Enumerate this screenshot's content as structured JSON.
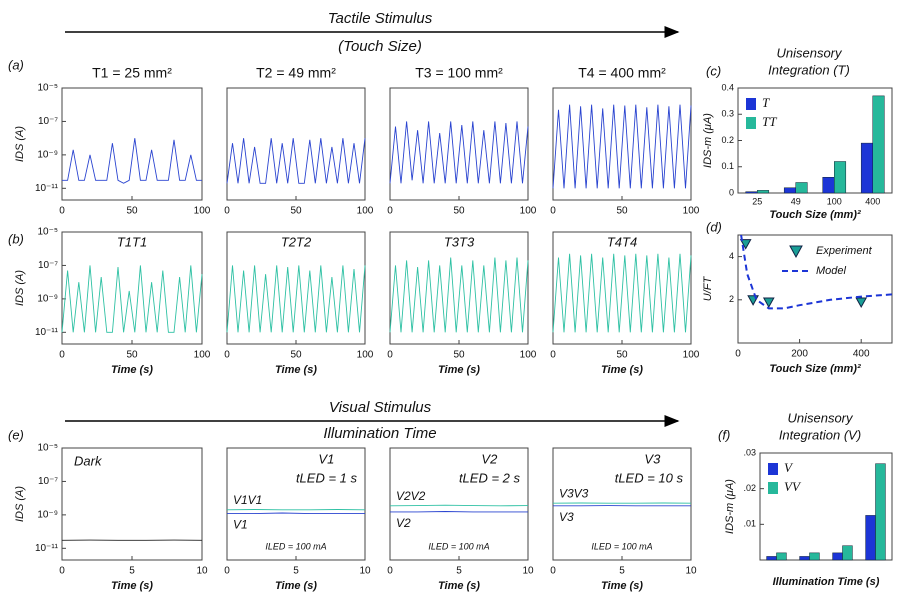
{
  "header": {
    "tactile": "Tactile Stimulus",
    "touch_size": "(Touch Size)",
    "visual": "Visual Stimulus",
    "illumination": "Illumination Time"
  },
  "chart_data": [
    {
      "type": "line",
      "panel_label": "(a)",
      "title": "T1 = 25 mm²",
      "title_color": "#2233bb",
      "log_y": true,
      "ylabel": "IDS (A)",
      "ylim": [
        2e-12,
        1e-05
      ],
      "yticks": [
        {
          "value": 1e-05,
          "label": "10⁻⁵"
        },
        {
          "value": 1e-07,
          "label": "10⁻⁷"
        },
        {
          "value": 1e-09,
          "label": "10⁻⁹"
        },
        {
          "value": 1e-11,
          "label": "10⁻¹¹"
        }
      ],
      "xlim": [
        0,
        100
      ],
      "xticks": [
        0,
        50,
        100
      ],
      "x": [
        0,
        4,
        8,
        12,
        16,
        20,
        24,
        28,
        32,
        36,
        40,
        44,
        48,
        52,
        56,
        60,
        64,
        68,
        72,
        76,
        80,
        84,
        88,
        92,
        96,
        100
      ],
      "series": [
        {
          "color": "#2a44d0",
          "values": [
            3e-11,
            3e-11,
            2e-09,
            3e-11,
            3e-11,
            1e-09,
            3e-11,
            3e-11,
            3e-11,
            5e-09,
            3e-11,
            2e-11,
            3e-11,
            1e-08,
            3e-11,
            3e-11,
            2e-09,
            3e-11,
            3e-11,
            3e-11,
            8e-09,
            3e-11,
            3e-11,
            1e-09,
            3e-11,
            3e-11
          ]
        }
      ]
    },
    {
      "type": "line",
      "title": "T2 = 49 mm²",
      "title_color": "#2233bb",
      "log_y": true,
      "ylim": [
        2e-12,
        1e-05
      ],
      "xlim": [
        0,
        100
      ],
      "xticks": [
        0,
        50,
        100
      ],
      "x": [
        0,
        4,
        8,
        12,
        16,
        20,
        24,
        28,
        32,
        36,
        40,
        44,
        48,
        52,
        56,
        60,
        64,
        68,
        72,
        76,
        80,
        84,
        88,
        92,
        96,
        100
      ],
      "series": [
        {
          "color": "#2a44d0",
          "values": [
            2e-11,
            5e-09,
            2e-11,
            1e-08,
            2e-11,
            3e-09,
            2e-11,
            2e-11,
            1e-08,
            2e-11,
            5e-09,
            2e-11,
            1e-08,
            2e-11,
            2e-11,
            8e-09,
            2e-11,
            1e-08,
            2e-11,
            3e-09,
            2e-11,
            1e-08,
            2e-11,
            5e-09,
            2e-11,
            1e-08
          ]
        }
      ]
    },
    {
      "type": "line",
      "title": "T3 = 100 mm²",
      "title_color": "#2233bb",
      "log_y": true,
      "ylim": [
        2e-12,
        1e-05
      ],
      "xlim": [
        0,
        100
      ],
      "xticks": [
        0,
        50,
        100
      ],
      "x": [
        0,
        4,
        8,
        12,
        16,
        20,
        24,
        28,
        32,
        36,
        40,
        44,
        48,
        52,
        56,
        60,
        64,
        68,
        72,
        76,
        80,
        84,
        88,
        92,
        96,
        100
      ],
      "series": [
        {
          "color": "#2a44d0",
          "values": [
            2e-11,
            5e-08,
            2e-11,
            1e-07,
            3e-11,
            3e-08,
            2e-11,
            1e-07,
            2e-11,
            2e-08,
            2e-11,
            1e-07,
            2e-11,
            6e-08,
            2e-11,
            1e-07,
            2e-11,
            3e-08,
            2e-11,
            1e-07,
            2e-11,
            8e-08,
            2e-11,
            1e-07,
            2e-11,
            5e-08
          ]
        }
      ]
    },
    {
      "type": "line",
      "title": "T4 = 400 mm²",
      "title_color": "#2233bb",
      "log_y": true,
      "ylim": [
        2e-12,
        1e-05
      ],
      "xlim": [
        0,
        100
      ],
      "xticks": [
        0,
        50,
        100
      ],
      "x": [
        0,
        4,
        8,
        12,
        16,
        20,
        24,
        28,
        32,
        36,
        40,
        44,
        48,
        52,
        56,
        60,
        64,
        68,
        72,
        76,
        80,
        84,
        88,
        92,
        96,
        100
      ],
      "series": [
        {
          "color": "#2a44d0",
          "values": [
            1e-11,
            5e-07,
            1e-11,
            1e-06,
            1e-11,
            8e-07,
            1e-11,
            1e-06,
            1e-11,
            6e-07,
            1e-11,
            1e-06,
            1e-11,
            9e-07,
            1e-11,
            1e-06,
            1e-11,
            7e-07,
            1e-11,
            1e-06,
            1e-11,
            8e-07,
            1e-11,
            1e-06,
            1e-11,
            9e-07
          ]
        }
      ]
    },
    {
      "type": "line",
      "panel_label": "(b)",
      "title": "T1T1",
      "title_color": "#22b39a",
      "log_y": true,
      "ylabel": "IDS (A)",
      "xlabel": "Time (s)",
      "ylim": [
        2e-12,
        1e-05
      ],
      "yticks": [
        {
          "value": 1e-05,
          "label": "10⁻⁵"
        },
        {
          "value": 1e-07,
          "label": "10⁻⁷"
        },
        {
          "value": 1e-09,
          "label": "10⁻⁹"
        },
        {
          "value": 1e-11,
          "label": "10⁻¹¹"
        }
      ],
      "xlim": [
        0,
        100
      ],
      "xticks": [
        0,
        50,
        100
      ],
      "x": [
        0,
        4,
        8,
        12,
        16,
        20,
        24,
        28,
        32,
        36,
        40,
        44,
        48,
        52,
        56,
        60,
        64,
        68,
        72,
        76,
        80,
        84,
        88,
        92,
        96,
        100
      ],
      "series": [
        {
          "color": "#2fc1a4",
          "values": [
            1e-11,
            5e-08,
            1e-11,
            1e-08,
            1e-11,
            1e-07,
            1e-11,
            2e-08,
            1e-11,
            1e-11,
            8e-08,
            1e-11,
            3e-09,
            1e-11,
            1e-07,
            1e-11,
            1e-08,
            1e-11,
            5e-08,
            1e-11,
            1e-11,
            2e-08,
            1e-11,
            1e-07,
            1e-11,
            3e-08
          ]
        }
      ]
    },
    {
      "type": "line",
      "title": "T2T2",
      "title_color": "#22b39a",
      "log_y": true,
      "xlabel": "Time (s)",
      "ylim": [
        2e-12,
        1e-05
      ],
      "xlim": [
        0,
        100
      ],
      "xticks": [
        0,
        50,
        100
      ],
      "x": [
        0,
        4,
        8,
        12,
        16,
        20,
        24,
        28,
        32,
        36,
        40,
        44,
        48,
        52,
        56,
        60,
        64,
        68,
        72,
        76,
        80,
        84,
        88,
        92,
        96,
        100
      ],
      "series": [
        {
          "color": "#2fc1a4",
          "values": [
            1e-11,
            1e-07,
            1e-11,
            5e-08,
            1e-11,
            1e-07,
            1e-11,
            3e-08,
            1e-11,
            1e-07,
            1e-11,
            8e-08,
            1e-11,
            1e-07,
            1e-11,
            5e-08,
            1e-11,
            1e-07,
            1e-11,
            2e-08,
            1e-11,
            1e-07,
            1e-11,
            6e-08,
            1e-11,
            1e-07
          ]
        }
      ]
    },
    {
      "type": "line",
      "title": "T3T3",
      "title_color": "#22b39a",
      "log_y": true,
      "xlabel": "Time (s)",
      "ylim": [
        2e-12,
        1e-05
      ],
      "xlim": [
        0,
        100
      ],
      "xticks": [
        0,
        50,
        100
      ],
      "x": [
        0,
        4,
        8,
        12,
        16,
        20,
        24,
        28,
        32,
        36,
        40,
        44,
        48,
        52,
        56,
        60,
        64,
        68,
        72,
        76,
        80,
        84,
        88,
        92,
        96,
        100
      ],
      "series": [
        {
          "color": "#2fc1a4",
          "values": [
            1e-11,
            1e-07,
            1e-11,
            2e-07,
            1e-11,
            8e-08,
            1e-11,
            2e-07,
            1e-11,
            1e-07,
            1e-11,
            3e-07,
            1e-11,
            1e-07,
            1e-11,
            2e-07,
            1e-11,
            1e-07,
            1e-11,
            3e-07,
            1e-11,
            2e-07,
            1e-11,
            3e-07,
            1e-11,
            2e-07
          ]
        }
      ]
    },
    {
      "type": "line",
      "title": "T4T4",
      "title_color": "#22b39a",
      "log_y": true,
      "xlabel": "Time (s)",
      "ylim": [
        2e-12,
        1e-05
      ],
      "xlim": [
        0,
        100
      ],
      "xticks": [
        0,
        50,
        100
      ],
      "x": [
        0,
        4,
        8,
        12,
        16,
        20,
        24,
        28,
        32,
        36,
        40,
        44,
        48,
        52,
        56,
        60,
        64,
        68,
        72,
        76,
        80,
        84,
        88,
        92,
        96,
        100
      ],
      "series": [
        {
          "color": "#2fc1a4",
          "values": [
            1e-11,
            3e-07,
            1e-11,
            5e-07,
            1e-11,
            4e-07,
            1e-11,
            5e-07,
            1e-11,
            3e-07,
            1e-11,
            5e-07,
            1e-11,
            4e-07,
            1e-11,
            5e-07,
            1e-11,
            4e-07,
            1e-11,
            5e-07,
            1e-11,
            3e-07,
            1e-11,
            5e-07,
            1e-11,
            4e-07
          ]
        }
      ]
    },
    {
      "type": "line",
      "panel_label": "(e)",
      "title": "Dark",
      "title_color": "#111111",
      "log_y": true,
      "ylabel": "IDS (A)",
      "xlabel": "Time (s)",
      "ylim": [
        2e-12,
        1e-05
      ],
      "yticks": [
        {
          "value": 1e-05,
          "label": "10⁻⁵"
        },
        {
          "value": 1e-07,
          "label": "10⁻⁷"
        },
        {
          "value": 1e-09,
          "label": "10⁻⁹"
        },
        {
          "value": 1e-11,
          "label": "10⁻¹¹"
        }
      ],
      "xlim": [
        0,
        10
      ],
      "xticks": [
        0,
        5,
        10
      ],
      "x": [
        0,
        2,
        4,
        6,
        8,
        10
      ],
      "series": [
        {
          "color": "#222222",
          "values": [
            3e-11,
            3.1e-11,
            3e-11,
            3e-11,
            3.1e-11,
            3e-11
          ]
        }
      ]
    },
    {
      "type": "line",
      "log_y": true,
      "xlabel": "Time (s)",
      "ylim": [
        2e-12,
        1e-05
      ],
      "xlim": [
        0,
        10
      ],
      "xticks": [
        0,
        5,
        10
      ],
      "x": [
        0,
        2,
        4,
        6,
        8,
        10
      ],
      "annotations": [
        "V1",
        "tLED = 1 s",
        "ILED = 100 mA"
      ],
      "series": [
        {
          "name": "V1V1",
          "color": "#2fc1a4",
          "values": [
            2e-09,
            2.1e-09,
            2e-09,
            2e-09,
            2.1e-09,
            2e-09
          ]
        },
        {
          "name": "V1",
          "color": "#2a44d0",
          "values": [
            1.2e-09,
            1.2e-09,
            1.3e-09,
            1.2e-09,
            1.2e-09,
            1.2e-09
          ]
        }
      ]
    },
    {
      "type": "line",
      "log_y": true,
      "xlabel": "Time (s)",
      "ylim": [
        2e-12,
        1e-05
      ],
      "xlim": [
        0,
        10
      ],
      "xticks": [
        0,
        5,
        10
      ],
      "x": [
        0,
        2,
        4,
        6,
        8,
        10
      ],
      "annotations": [
        "V2",
        "tLED = 2 s",
        "ILED = 100 mA"
      ],
      "series": [
        {
          "name": "V2V2",
          "color": "#2fc1a4",
          "values": [
            3.5e-09,
            3.6e-09,
            3.8e-09,
            3.6e-09,
            3.5e-09,
            3.6e-09
          ]
        },
        {
          "name": "V2",
          "color": "#2a44d0",
          "values": [
            1.5e-09,
            1.5e-09,
            1.6e-09,
            1.5e-09,
            1.5e-09,
            1.5e-09
          ]
        }
      ]
    },
    {
      "type": "line",
      "log_y": true,
      "xlabel": "Time (s)",
      "ylim": [
        2e-12,
        1e-05
      ],
      "xlim": [
        0,
        10
      ],
      "xticks": [
        0,
        5,
        10
      ],
      "x": [
        0,
        2,
        4,
        6,
        8,
        10
      ],
      "annotations": [
        "V3",
        "tLED = 10 s",
        "ILED = 100 mA"
      ],
      "series": [
        {
          "name": "V3V3",
          "color": "#2fc1a4",
          "values": [
            5e-09,
            5.1e-09,
            5e-09,
            5e-09,
            5.1e-09,
            5e-09
          ]
        },
        {
          "name": "V3",
          "color": "#2a44d0",
          "values": [
            3.5e-09,
            3.5e-09,
            3.6e-09,
            3.5e-09,
            3.5e-09,
            3.5e-09
          ]
        }
      ]
    },
    {
      "type": "bar",
      "panel_label": "(c)",
      "title": [
        "Unisensory",
        "Integration (T)"
      ],
      "ylabel": "IDS-m (μA)",
      "xlabel": "Touch Size (mm)²",
      "categories": [
        "25",
        "49",
        "100",
        "400"
      ],
      "ylim": [
        0,
        0.4
      ],
      "yticks": [
        0,
        0.1,
        0.2,
        0.3,
        0.4
      ],
      "legend": "upper left",
      "series": [
        {
          "name": "T",
          "color": "#1c35d6",
          "values": [
            0.005,
            0.02,
            0.06,
            0.19
          ]
        },
        {
          "name": "TT",
          "color": "#26b89b",
          "values": [
            0.01,
            0.04,
            0.12,
            0.37
          ]
        }
      ]
    },
    {
      "type": "line",
      "panel_label": "(d)",
      "ylabel": "U/FT",
      "xlabel": "Touch Size (mm)²",
      "xlim": [
        0,
        500
      ],
      "xticks": [
        0,
        200,
        400
      ],
      "ylim": [
        0,
        5
      ],
      "yticks": [
        2,
        4
      ],
      "legend": "upper right",
      "series": [
        {
          "name": "Experiment",
          "style": "markers",
          "color": "#1a9e96",
          "x": [
            25,
            49,
            100,
            400
          ],
          "values": [
            4.6,
            2.0,
            1.9,
            1.9
          ]
        },
        {
          "name": "Model",
          "style": "dashed",
          "color": "#1c35d6",
          "x": [
            10,
            30,
            60,
            100,
            150,
            200,
            300,
            400,
            500
          ],
          "values": [
            5,
            3.2,
            2.0,
            1.6,
            1.6,
            1.75,
            2.0,
            2.15,
            2.25
          ]
        }
      ]
    },
    {
      "type": "bar",
      "panel_label": "(f)",
      "title": [
        "Unisensory",
        "Integration (V)"
      ],
      "ylabel": "IDS-m (μA)",
      "xlabel": "Illumination Time (s)",
      "categories": [
        null,
        null,
        null,
        null
      ],
      "ylim": [
        0,
        0.03
      ],
      "yticks": [
        {
          "value": 0.01,
          "label": ".01"
        },
        {
          "value": 0.02,
          "label": ".02"
        },
        {
          "value": 0.03,
          "label": ".03"
        }
      ],
      "legend": "upper left",
      "series": [
        {
          "name": "V",
          "color": "#1c35d6",
          "values": [
            0.001,
            0.001,
            0.002,
            0.0125
          ]
        },
        {
          "name": "VV",
          "color": "#26b89b",
          "values": [
            0.002,
            0.002,
            0.004,
            0.027
          ]
        }
      ]
    }
  ]
}
